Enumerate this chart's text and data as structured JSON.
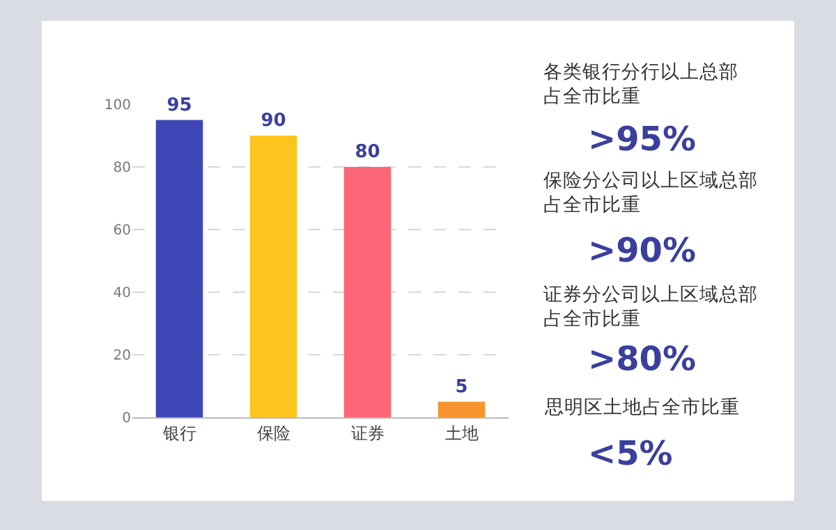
{
  "chart_data": {
    "type": "bar",
    "categories": [
      "银行",
      "保险",
      "证券",
      "土地"
    ],
    "values": [
      95,
      90,
      80,
      5
    ],
    "colors": [
      "#3d47b5",
      "#fcc41c",
      "#fd6679",
      "#f7942f"
    ],
    "ylim": [
      0,
      100
    ],
    "yticks": [
      0,
      20,
      40,
      60,
      80,
      100
    ],
    "grid": "y",
    "data_labels": true,
    "annotations": [
      "各类银行分行以上总部占全市比重",
      ">95%",
      "保险分公司以上区域总部占全市比重",
      ">90%",
      "证券分公司以上区域总部占全市比重",
      ">80%",
      "思明区土地占全市比重",
      "<5%"
    ]
  }
}
